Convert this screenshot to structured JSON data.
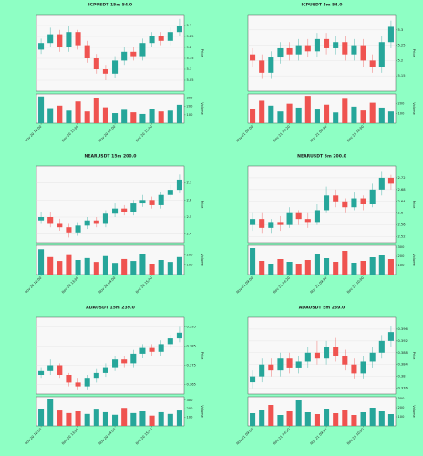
{
  "chart_data": [
    {
      "type": "candlestick",
      "title": "ICPUSDT 15m 54.0",
      "y_label": "Price",
      "volume_label": "Volume",
      "x": [
        "Nov 20 12:00",
        null,
        null,
        null,
        "Nov 20 13:00",
        null,
        null,
        null,
        "Nov 20 14:00",
        null,
        null,
        null,
        "Nov 20 15:00",
        null,
        null,
        null
      ],
      "open": [
        5.19,
        5.22,
        5.26,
        5.2,
        5.27,
        5.21,
        5.15,
        5.1,
        5.08,
        5.14,
        5.18,
        5.16,
        5.22,
        5.25,
        5.23,
        5.27
      ],
      "high": [
        5.24,
        5.29,
        5.28,
        5.3,
        5.28,
        5.23,
        5.17,
        5.12,
        5.16,
        5.2,
        5.2,
        5.24,
        5.27,
        5.27,
        5.29,
        5.33
      ],
      "low": [
        5.17,
        5.2,
        5.18,
        5.18,
        5.19,
        5.13,
        5.08,
        5.05,
        5.06,
        5.12,
        5.14,
        5.14,
        5.2,
        5.21,
        5.21,
        5.25
      ],
      "close": [
        5.22,
        5.26,
        5.2,
        5.27,
        5.21,
        5.15,
        5.1,
        5.08,
        5.14,
        5.18,
        5.16,
        5.22,
        5.25,
        5.23,
        5.27,
        5.3
      ],
      "volume": [
        320,
        180,
        210,
        150,
        260,
        140,
        300,
        190,
        120,
        160,
        130,
        110,
        170,
        140,
        150,
        220
      ],
      "ylim": [
        5.0,
        5.35
      ],
      "yticks": [
        5.05,
        5.1,
        5.15,
        5.2,
        5.25,
        5.3
      ],
      "volume_ylim": [
        0,
        350
      ],
      "volume_yticks": [
        100,
        200,
        300
      ],
      "up_color": "#26a69a",
      "down_color": "#ef5350"
    },
    {
      "type": "candlestick",
      "title": "ICPUSDT 5m 54.0",
      "y_label": "Price",
      "volume_label": "Volume",
      "x": [
        "Nov 21 09:00",
        null,
        null,
        null,
        "Nov 21 09:20",
        null,
        null,
        null,
        "Nov 21 09:40",
        null,
        null,
        null,
        "Nov 21 10:00",
        null,
        null,
        null
      ],
      "open": [
        5.22,
        5.2,
        5.16,
        5.21,
        5.24,
        5.22,
        5.25,
        5.23,
        5.27,
        5.24,
        5.26,
        5.22,
        5.25,
        5.2,
        5.18,
        5.26
      ],
      "high": [
        5.24,
        5.22,
        5.23,
        5.26,
        5.26,
        5.27,
        5.27,
        5.29,
        5.29,
        5.28,
        5.28,
        5.27,
        5.27,
        5.22,
        5.28,
        5.33
      ],
      "low": [
        5.18,
        5.14,
        5.14,
        5.19,
        5.2,
        5.2,
        5.21,
        5.21,
        5.22,
        5.22,
        5.2,
        5.2,
        5.18,
        5.16,
        5.16,
        5.24
      ],
      "close": [
        5.2,
        5.16,
        5.21,
        5.24,
        5.22,
        5.25,
        5.23,
        5.27,
        5.24,
        5.26,
        5.22,
        5.25,
        5.2,
        5.18,
        5.26,
        5.31
      ],
      "volume": [
        150,
        230,
        180,
        120,
        200,
        160,
        280,
        140,
        190,
        110,
        250,
        170,
        130,
        210,
        160,
        120
      ],
      "ylim": [
        5.1,
        5.35
      ],
      "yticks": [
        5.15,
        5.2,
        5.25,
        5.3
      ],
      "volume_ylim": [
        0,
        300
      ],
      "volume_yticks": [
        100,
        200
      ],
      "up_color": "#26a69a",
      "down_color": "#ef5350"
    },
    {
      "type": "candlestick",
      "title": "NEARUSDT 15m 200.0",
      "y_label": "Price",
      "volume_label": "Volume",
      "x": [
        "Nov 20 12:00",
        null,
        null,
        null,
        "Nov 20 13:00",
        null,
        null,
        null,
        "Nov 20 14:00",
        null,
        null,
        null,
        "Nov 20 15:00",
        null,
        null,
        null
      ],
      "open": [
        2.48,
        2.5,
        2.46,
        2.44,
        2.41,
        2.45,
        2.48,
        2.46,
        2.52,
        2.55,
        2.53,
        2.58,
        2.6,
        2.57,
        2.63,
        2.66
      ],
      "high": [
        2.53,
        2.53,
        2.49,
        2.46,
        2.47,
        2.5,
        2.5,
        2.54,
        2.58,
        2.57,
        2.6,
        2.63,
        2.62,
        2.65,
        2.69,
        2.75
      ],
      "low": [
        2.46,
        2.44,
        2.42,
        2.38,
        2.39,
        2.43,
        2.44,
        2.44,
        2.5,
        2.51,
        2.51,
        2.56,
        2.55,
        2.55,
        2.61,
        2.64
      ],
      "close": [
        2.5,
        2.46,
        2.44,
        2.41,
        2.45,
        2.48,
        2.46,
        2.52,
        2.55,
        2.53,
        2.58,
        2.6,
        2.57,
        2.63,
        2.66,
        2.72
      ],
      "volume": [
        260,
        180,
        140,
        200,
        150,
        170,
        130,
        190,
        120,
        160,
        140,
        210,
        110,
        150,
        130,
        180
      ],
      "ylim": [
        2.35,
        2.8
      ],
      "yticks": [
        2.4,
        2.5,
        2.6,
        2.7
      ],
      "volume_ylim": [
        0,
        300
      ],
      "volume_yticks": [
        100,
        200
      ],
      "up_color": "#26a69a",
      "down_color": "#ef5350"
    },
    {
      "type": "candlestick",
      "title": "NEARUSDT 5m 200.0",
      "y_label": "Price",
      "volume_label": "Volume",
      "x": [
        "Nov 21 09:00",
        null,
        null,
        null,
        "Nov 21 09:20",
        null,
        null,
        null,
        "Nov 21 09:40",
        null,
        null,
        null,
        "Nov 21 10:00",
        null,
        null,
        null
      ],
      "open": [
        2.56,
        2.58,
        2.55,
        2.57,
        2.56,
        2.6,
        2.58,
        2.57,
        2.61,
        2.66,
        2.64,
        2.62,
        2.65,
        2.63,
        2.68,
        2.72
      ],
      "high": [
        2.6,
        2.6,
        2.58,
        2.59,
        2.62,
        2.61,
        2.6,
        2.63,
        2.69,
        2.68,
        2.65,
        2.67,
        2.66,
        2.7,
        2.74,
        2.73
      ],
      "low": [
        2.54,
        2.53,
        2.53,
        2.54,
        2.55,
        2.56,
        2.55,
        2.56,
        2.6,
        2.62,
        2.6,
        2.61,
        2.61,
        2.62,
        2.66,
        2.68
      ],
      "close": [
        2.58,
        2.55,
        2.57,
        2.56,
        2.6,
        2.58,
        2.57,
        2.61,
        2.66,
        2.64,
        2.62,
        2.65,
        2.63,
        2.68,
        2.72,
        2.7
      ],
      "volume": [
        290,
        150,
        120,
        170,
        140,
        110,
        160,
        230,
        180,
        140,
        260,
        130,
        150,
        190,
        210,
        170
      ],
      "ylim": [
        2.5,
        2.76
      ],
      "yticks": [
        2.52,
        2.56,
        2.6,
        2.64,
        2.68,
        2.72
      ],
      "volume_ylim": [
        0,
        320
      ],
      "volume_yticks": [
        100,
        200,
        300
      ],
      "up_color": "#26a69a",
      "down_color": "#ef5350"
    },
    {
      "type": "candlestick",
      "title": "ADAUSDT 15m 239.0",
      "y_label": "Price",
      "volume_label": "Volume",
      "x": [
        "Nov 20 12:00",
        null,
        null,
        null,
        "Nov 20 13:00",
        null,
        null,
        null,
        "Nov 20 14:00",
        null,
        null,
        null,
        "Nov 20 15:00",
        null,
        null,
        null
      ],
      "open": [
        0.37,
        0.372,
        0.375,
        0.37,
        0.366,
        0.364,
        0.368,
        0.371,
        0.374,
        0.378,
        0.376,
        0.381,
        0.384,
        0.382,
        0.386,
        0.389
      ],
      "high": [
        0.374,
        0.378,
        0.376,
        0.371,
        0.368,
        0.37,
        0.373,
        0.376,
        0.38,
        0.38,
        0.383,
        0.386,
        0.386,
        0.388,
        0.391,
        0.395
      ],
      "low": [
        0.368,
        0.37,
        0.368,
        0.364,
        0.362,
        0.362,
        0.366,
        0.369,
        0.372,
        0.374,
        0.374,
        0.379,
        0.38,
        0.38,
        0.384,
        0.387
      ],
      "close": [
        0.372,
        0.375,
        0.37,
        0.366,
        0.364,
        0.368,
        0.371,
        0.374,
        0.378,
        0.376,
        0.381,
        0.384,
        0.382,
        0.386,
        0.389,
        0.392
      ],
      "volume": [
        200,
        310,
        180,
        150,
        170,
        140,
        190,
        160,
        130,
        210,
        150,
        170,
        120,
        160,
        140,
        180
      ],
      "ylim": [
        0.36,
        0.4
      ],
      "yticks": [
        0.365,
        0.375,
        0.385,
        0.395
      ],
      "volume_ylim": [
        0,
        340
      ],
      "volume_yticks": [
        100,
        200,
        300
      ],
      "up_color": "#26a69a",
      "down_color": "#ef5350"
    },
    {
      "type": "candlestick",
      "title": "ADAUSDT 5m 239.0",
      "y_label": "Price",
      "volume_label": "Volume",
      "x": [
        "Nov 21 09:00",
        null,
        null,
        null,
        "Nov 21 09:20",
        null,
        null,
        null,
        "Nov 21 09:40",
        null,
        null,
        null,
        "Nov 21 10:00",
        null,
        null,
        null
      ],
      "open": [
        0.378,
        0.38,
        0.384,
        0.382,
        0.386,
        0.383,
        0.385,
        0.388,
        0.386,
        0.39,
        0.387,
        0.384,
        0.381,
        0.385,
        0.388,
        0.392
      ],
      "high": [
        0.382,
        0.386,
        0.386,
        0.388,
        0.388,
        0.387,
        0.39,
        0.392,
        0.392,
        0.393,
        0.389,
        0.386,
        0.387,
        0.39,
        0.394,
        0.397
      ],
      "low": [
        0.376,
        0.378,
        0.38,
        0.38,
        0.381,
        0.381,
        0.383,
        0.384,
        0.384,
        0.385,
        0.382,
        0.379,
        0.379,
        0.383,
        0.386,
        0.39
      ],
      "close": [
        0.38,
        0.384,
        0.382,
        0.386,
        0.383,
        0.385,
        0.388,
        0.386,
        0.39,
        0.387,
        0.384,
        0.381,
        0.385,
        0.388,
        0.392,
        0.395
      ],
      "volume": [
        140,
        170,
        230,
        120,
        160,
        280,
        150,
        130,
        190,
        140,
        170,
        120,
        150,
        200,
        160,
        130
      ],
      "ylim": [
        0.374,
        0.4
      ],
      "yticks": [
        0.376,
        0.38,
        0.384,
        0.388,
        0.392,
        0.396
      ],
      "volume_ylim": [
        0,
        320
      ],
      "volume_yticks": [
        100,
        200,
        300
      ],
      "up_color": "#26a69a",
      "down_color": "#ef5350"
    }
  ]
}
